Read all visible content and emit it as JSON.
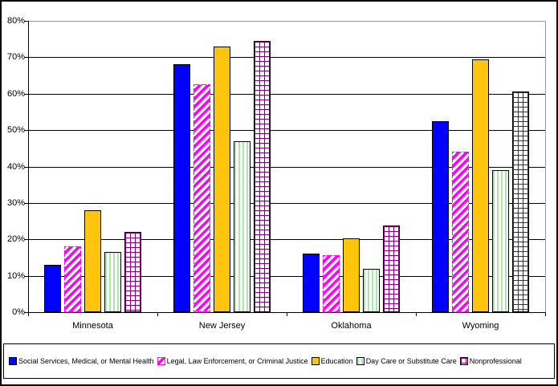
{
  "chart_data": {
    "type": "bar",
    "title": "",
    "xlabel": "",
    "ylabel": "",
    "categories": [
      "Minnesota",
      "New Jersey",
      "Oklahoma",
      "Wyoming"
    ],
    "series": [
      {
        "name": "Social Services, Medical, or Mental Health",
        "pattern": "solid-blue",
        "color": "#0000FF",
        "values": [
          13,
          68,
          16,
          52.5
        ]
      },
      {
        "name": "Legal, Law Enforcement, or Criminal Justice",
        "pattern": "magenta-diagonal-stripes",
        "color": "#FF00FF",
        "values": [
          18,
          62.5,
          15.7,
          44
        ]
      },
      {
        "name": "Education",
        "pattern": "solid-gold",
        "color": "#FFC40D",
        "values": [
          28,
          73,
          20.3,
          69.5
        ]
      },
      {
        "name": "Day Care or Substitute Care",
        "pattern": "green-vertical-stripes",
        "color": "#AAE8AA",
        "values": [
          16.5,
          47,
          12,
          39
        ]
      },
      {
        "name": "Nonprofessional",
        "pattern": "purple-grid",
        "color": "#800080",
        "values": [
          22,
          74.5,
          23.8,
          60.5
        ]
      }
    ],
    "ylim": [
      0,
      80
    ],
    "ytick_step": 10,
    "ytick_labels": [
      "0%",
      "10%",
      "20%",
      "30%",
      "40%",
      "50%",
      "60%",
      "70%",
      "80%"
    ],
    "grid": true,
    "legend_position": "bottom"
  },
  "colors": {
    "background": "#FFFFFF",
    "gridline": "#000000",
    "axis": "#000000",
    "plot_border_gray": "#969696",
    "text": "#000000"
  }
}
